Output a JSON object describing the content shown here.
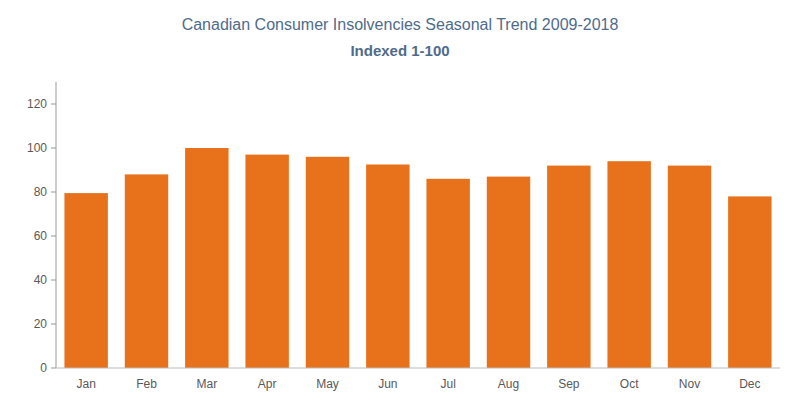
{
  "chart_data": {
    "type": "bar",
    "title": "Canadian Consumer Insolvencies Seasonal Trend 2009-2018",
    "subtitle": "Indexed 1-100",
    "categories": [
      "Jan",
      "Feb",
      "Mar",
      "Apr",
      "May",
      "Jun",
      "Jul",
      "Aug",
      "Sep",
      "Oct",
      "Nov",
      "Dec"
    ],
    "values": [
      79.5,
      88.0,
      100.0,
      97.0,
      96.0,
      92.5,
      86.0,
      87.0,
      92.0,
      94.0,
      92.0,
      78.0
    ],
    "color": "#E8721C",
    "ylim": [
      0,
      130
    ],
    "yticks": [
      0,
      20,
      40,
      60,
      80,
      100,
      120
    ],
    "grid": false
  }
}
